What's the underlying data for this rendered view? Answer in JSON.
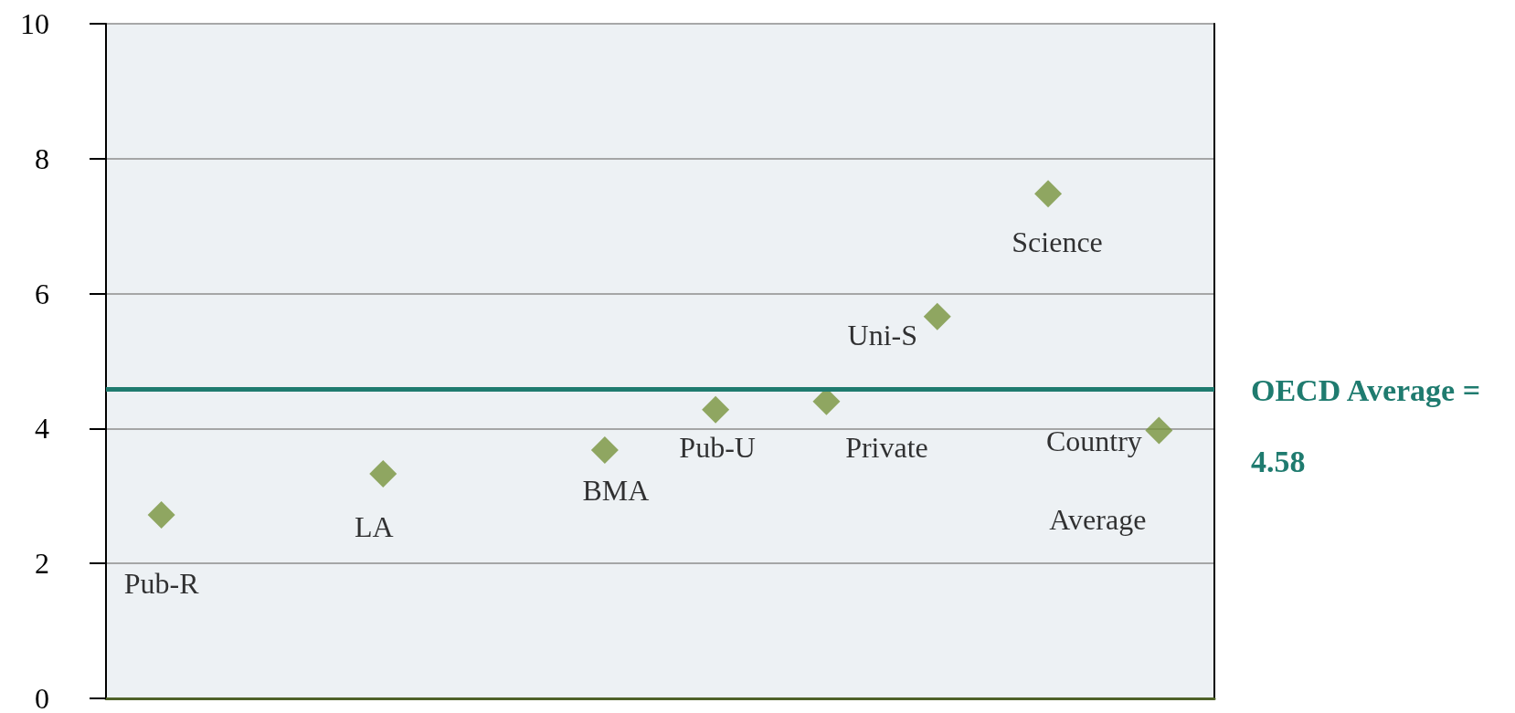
{
  "chart_data": {
    "type": "scatter",
    "categories": [
      null,
      null,
      null,
      null,
      null,
      null,
      null,
      null,
      null,
      null
    ],
    "series": [
      {
        "name": "Pub-R",
        "color": "#77933c",
        "values": [
          2.72,
          null,
          null,
          null,
          null,
          null,
          null,
          null,
          null,
          null
        ]
      },
      {
        "name": "LA",
        "color": "#77933c",
        "values": [
          null,
          null,
          3.33,
          null,
          null,
          null,
          null,
          null,
          null,
          null
        ]
      },
      {
        "name": "BMA",
        "color": "#77933c",
        "values": [
          null,
          null,
          null,
          null,
          3.68,
          null,
          null,
          null,
          null,
          null
        ]
      },
      {
        "name": "Pub-U",
        "color": "#77933c",
        "values": [
          null,
          null,
          null,
          null,
          null,
          4.28,
          null,
          null,
          null,
          null
        ]
      },
      {
        "name": "Private",
        "color": "#77933c",
        "values": [
          null,
          null,
          null,
          null,
          null,
          null,
          4.4,
          null,
          null,
          null
        ]
      },
      {
        "name": "Uni-S",
        "color": "#77933c",
        "values": [
          null,
          null,
          null,
          null,
          null,
          null,
          null,
          5.66,
          null,
          null
        ]
      },
      {
        "name": "Science",
        "color": "#77933c",
        "values": [
          null,
          null,
          null,
          null,
          null,
          null,
          null,
          null,
          7.48,
          null
        ]
      },
      {
        "name": "Country Average",
        "color": "#77933c",
        "values": [
          null,
          null,
          null,
          null,
          null,
          null,
          null,
          null,
          null,
          3.97
        ]
      }
    ],
    "ylim": [
      0,
      10
    ],
    "yticks": [
      0,
      2,
      4,
      6,
      8,
      10
    ],
    "ref_lines": [
      {
        "axis": "y",
        "value": 4.58,
        "label": "OECD Average = 4.58",
        "color": "#1f7b6f"
      }
    ],
    "grid": "y",
    "legend": false,
    "marker": "diamond",
    "tick_labels": "y"
  }
}
